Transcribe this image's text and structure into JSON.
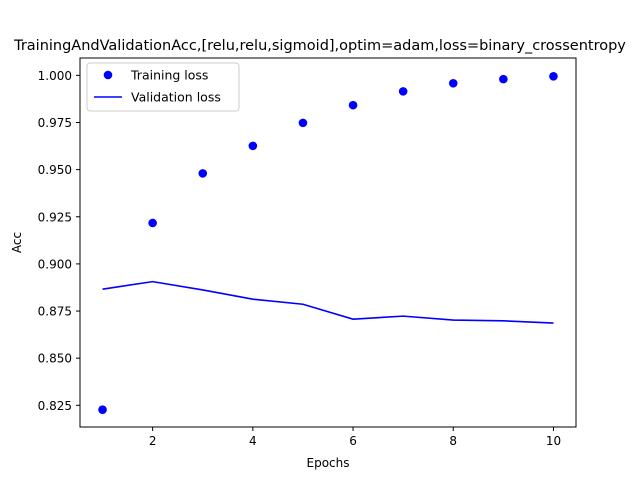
{
  "chart_data": {
    "type": "line",
    "title": "TrainingAndValidationAcc,[relu,relu,sigmoid],optim=adam,loss=binary_crossentropy",
    "xlabel": "Epochs",
    "ylabel": "Acc",
    "xlim": [
      0.55,
      10.45
    ],
    "ylim": [
      0.8135,
      1.0092
    ],
    "x_ticks": [
      "2",
      "4",
      "6",
      "8",
      "10"
    ],
    "y_ticks": [
      "0.825",
      "0.850",
      "0.875",
      "0.900",
      "0.925",
      "0.950",
      "0.975",
      "1.000"
    ],
    "grid": false,
    "legend_position": "top-left",
    "series": [
      {
        "name": "Training loss",
        "style": "markers",
        "color": "#0000ff",
        "x": [
          1,
          2,
          3,
          4,
          5,
          6,
          7,
          8,
          9,
          10
        ],
        "y": [
          0.8227,
          0.9217,
          0.948,
          0.9626,
          0.9748,
          0.9842,
          0.9915,
          0.9958,
          0.998,
          0.9995
        ]
      },
      {
        "name": "Validation loss",
        "style": "line",
        "color": "#0000ff",
        "x": [
          1,
          2,
          3,
          4,
          5,
          6,
          7,
          8,
          9,
          10
        ],
        "y": [
          0.8866,
          0.8906,
          0.8862,
          0.8813,
          0.8786,
          0.8707,
          0.8723,
          0.8702,
          0.8698,
          0.8686
        ]
      }
    ]
  }
}
